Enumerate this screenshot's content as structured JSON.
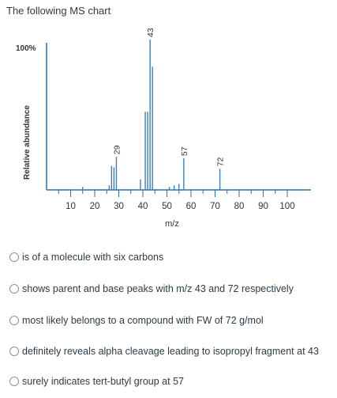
{
  "question": {
    "intro": "The following MS chart"
  },
  "chart_data": {
    "type": "bar",
    "xlabel": "m/z",
    "ylabel": "Relative abundance",
    "y_top_label": "100%",
    "xticks": [
      "10",
      "20",
      "30",
      "40",
      "50",
      "60",
      "70",
      "80",
      "90",
      "100"
    ],
    "xlim": [
      0,
      105
    ],
    "ylim": [
      0,
      100
    ],
    "peaks": [
      {
        "mz": 15,
        "value": 2
      },
      {
        "mz": 26,
        "value": 3
      },
      {
        "mz": 27,
        "value": 16
      },
      {
        "mz": 28,
        "value": 15
      },
      {
        "mz": 29,
        "value": 22
      },
      {
        "mz": 39,
        "value": 7
      },
      {
        "mz": 41,
        "value": 52
      },
      {
        "mz": 42,
        "value": 52
      },
      {
        "mz": 43,
        "value": 100
      },
      {
        "mz": 44,
        "value": 82
      },
      {
        "mz": 51,
        "value": 2
      },
      {
        "mz": 53,
        "value": 3
      },
      {
        "mz": 55,
        "value": 4
      },
      {
        "mz": 57,
        "value": 21
      },
      {
        "mz": 72,
        "value": 14
      }
    ],
    "annotations": [
      {
        "mz": 43,
        "text": "43"
      },
      {
        "mz": 29,
        "text": "29"
      },
      {
        "mz": 57,
        "text": "57"
      },
      {
        "mz": 72,
        "text": "72"
      }
    ]
  },
  "options": [
    "is of a molecule with six carbons",
    "shows parent and base peaks with m/z 43 and 72 respectively",
    "most likely belongs to a compound with FW of 72 g/mol",
    "definitely reveals alpha cleavage leading to isopropyl fragment at 43",
    "surely indicates tert-butyl group at 57"
  ],
  "colors": {
    "axis": "#2f6ea8",
    "peaks": "#3c7fc0",
    "text": "#2d3b45"
  }
}
